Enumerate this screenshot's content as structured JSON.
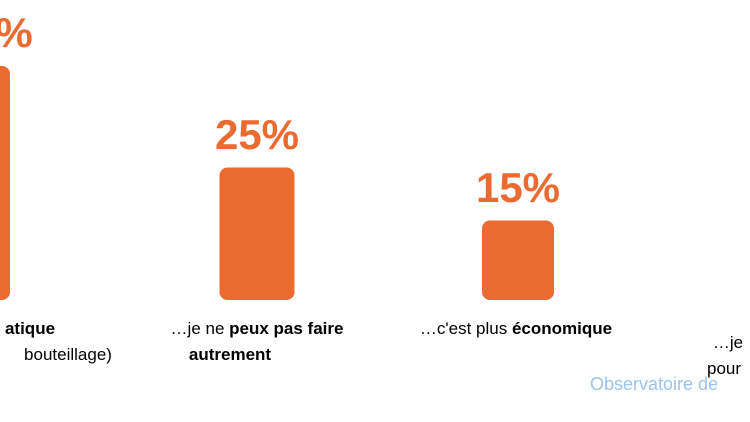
{
  "chart_data": {
    "type": "bar",
    "categories": [
      "…atique (…bouteillage)",
      "…je ne peux pas faire autrement",
      "…c'est plus économique",
      "…je … pour …"
    ],
    "values": [
      null,
      25,
      15,
      null
    ],
    "value_labels": [
      "%",
      "25%",
      "15%",
      ""
    ],
    "category_lines": [
      [
        {
          "t": "atique",
          "b": true
        }
      ],
      [
        {
          "t": "bouteillage)",
          "b": false
        }
      ],
      [
        {
          "t": "…je ne ",
          "b": false
        },
        {
          "t": "peux pas faire",
          "b": true
        }
      ],
      [
        {
          "t": "autrement",
          "b": true
        }
      ],
      [
        {
          "t": "…c'est plus ",
          "b": false
        },
        {
          "t": "économique",
          "b": true
        }
      ],
      [
        {
          "t": "…je",
          "b": false
        }
      ],
      [
        {
          "t": "pour",
          "b": false
        }
      ]
    ],
    "title": "",
    "xlabel": "",
    "ylabel": "",
    "grid": false,
    "legend": "none",
    "bar_color": "#eb6a2f"
  },
  "source": {
    "text": "Observatoire de"
  }
}
